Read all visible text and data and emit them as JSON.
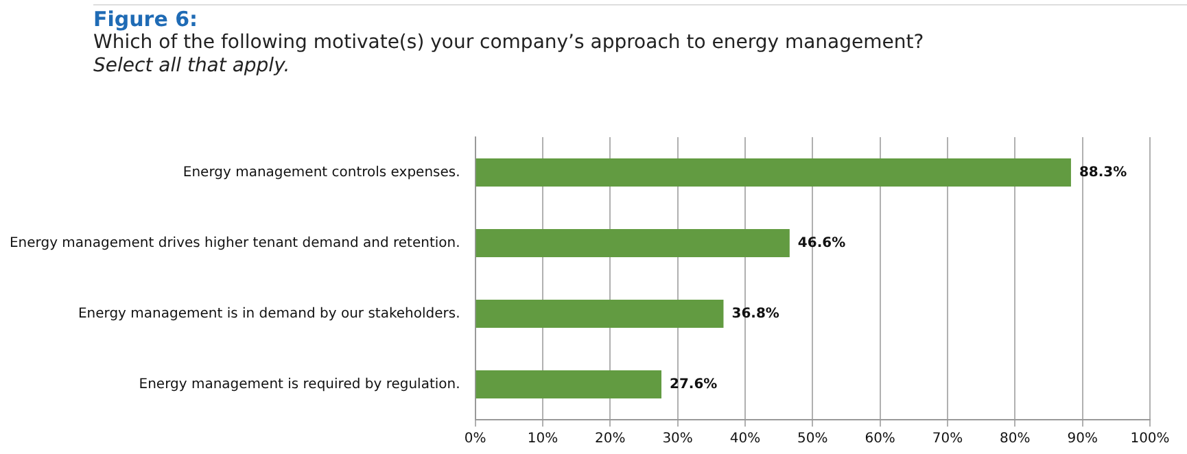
{
  "chart_data": {
    "type": "bar",
    "orientation": "horizontal",
    "title": "Figure 6:",
    "subtitle": "Which of the following motivate(s) your company’s approach to energy management?",
    "annotations": [
      "Select all that apply."
    ],
    "categories": [
      "Energy management controls expenses.",
      "Energy management drives higher tenant demand and retention.",
      "Energy management is in demand by our stakeholders.",
      "Energy management is required by regulation."
    ],
    "values": [
      88.3,
      46.6,
      36.8,
      27.6
    ],
    "value_labels": [
      "88.3%",
      "46.6%",
      "36.8%",
      "27.6%"
    ],
    "color": "#629b41",
    "xlim": [
      0,
      100
    ],
    "xticks": [
      {
        "value": 0,
        "label": "0%"
      },
      {
        "value": 10,
        "label": "10%"
      },
      {
        "value": 20,
        "label": "20%"
      },
      {
        "value": 30,
        "label": "30%"
      },
      {
        "value": 40,
        "label": "40%"
      },
      {
        "value": 50,
        "label": "50%"
      },
      {
        "value": 60,
        "label": "60%"
      },
      {
        "value": 70,
        "label": "70%"
      },
      {
        "value": 80,
        "label": "80%"
      },
      {
        "value": 90,
        "label": "90%"
      },
      {
        "value": 100,
        "label": "100%"
      }
    ],
    "grid": "x",
    "legend": false
  }
}
